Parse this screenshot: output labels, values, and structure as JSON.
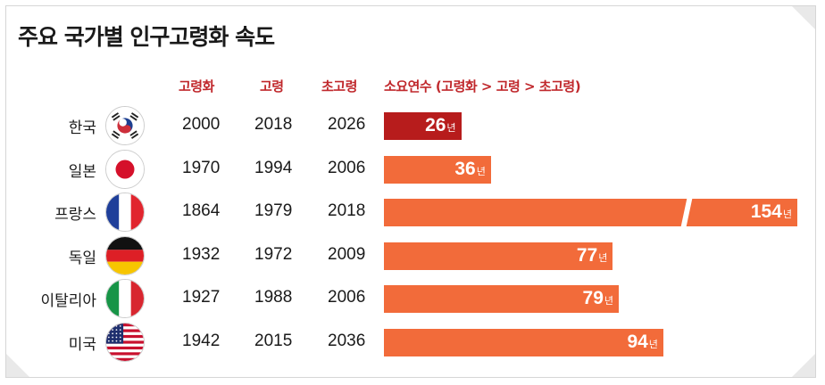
{
  "title": "주요 국가별 인구고령화 속도",
  "headers": {
    "aging": "고령화",
    "aged": "고령",
    "superaged": "초고령",
    "duration": "소요연수 (고령화 > 고령 > 초고령)"
  },
  "bar_unit": "년",
  "chart_data": {
    "type": "bar",
    "title": "주요 국가별 인구고령화 속도",
    "categories": [
      "한국",
      "일본",
      "프랑스",
      "독일",
      "이탈리아",
      "미국"
    ],
    "series": [
      {
        "name": "소요연수 (고령화 > 고령 > 초고령)",
        "values": [
          26,
          36,
          154,
          77,
          79,
          94
        ]
      }
    ],
    "table_columns": [
      "고령화",
      "고령",
      "초고령"
    ],
    "rows": [
      {
        "country": "한국",
        "flag": "korea-flag-icon",
        "aging": "2000",
        "aged": "2018",
        "superaged": "2026",
        "years": 26,
        "years_label": "26",
        "color": "#b71c1c"
      },
      {
        "country": "일본",
        "flag": "japan-flag-icon",
        "aging": "1970",
        "aged": "1994",
        "superaged": "2006",
        "years": 36,
        "years_label": "36",
        "color": "#f26b3a"
      },
      {
        "country": "프랑스",
        "flag": "france-flag-icon",
        "aging": "1864",
        "aged": "1979",
        "superaged": "2018",
        "years": 154,
        "years_label": "154",
        "color": "#f26b3a",
        "axis_break": true
      },
      {
        "country": "독일",
        "flag": "germany-flag-icon",
        "aging": "1932",
        "aged": "1972",
        "superaged": "2009",
        "years": 77,
        "years_label": "77",
        "color": "#f26b3a"
      },
      {
        "country": "이탈리아",
        "flag": "italy-flag-icon",
        "aging": "1927",
        "aged": "1988",
        "superaged": "2006",
        "years": 79,
        "years_label": "79",
        "color": "#f26b3a"
      },
      {
        "country": "미국",
        "flag": "usa-flag-icon",
        "aging": "1942",
        "aged": "2015",
        "superaged": "2036",
        "years": 94,
        "years_label": "94",
        "color": "#f26b3a"
      }
    ]
  }
}
